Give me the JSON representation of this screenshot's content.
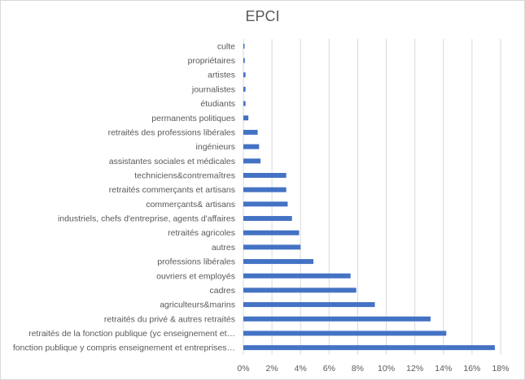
{
  "chart_data": {
    "type": "bar",
    "orientation": "horizontal",
    "title": "EPCI",
    "categories": [
      "fonction publique y compris enseignement et entreprises…",
      "retraités de la fonction publique (yc enseignement et…",
      "retraités du privé & autres retraités",
      "agriculteurs&marins",
      "cadres",
      "ouvriers et employés",
      "professions libérales",
      "autres",
      "retraités agricoles",
      "industriels, chefs d'entreprise, agents d'affaires",
      "commerçants& artisans",
      "retraités commerçants et artisans",
      "techniciens&contremaîtres",
      "assistantes sociales et médicales",
      "ingénieurs",
      "retraités des professions libérales",
      "permanents politiques",
      "étudiants",
      "journalistes",
      "artistes",
      "propriétaires",
      "culte"
    ],
    "values": [
      17.6,
      14.2,
      13.1,
      9.2,
      7.9,
      7.5,
      4.9,
      4.0,
      3.9,
      3.4,
      3.1,
      3.0,
      3.0,
      1.2,
      1.1,
      1.0,
      0.35,
      0.15,
      0.15,
      0.15,
      0.1,
      0.05
    ],
    "xlim": [
      0,
      18
    ],
    "xticks": [
      "0%",
      "2%",
      "4%",
      "6%",
      "8%",
      "10%",
      "12%",
      "14%",
      "16%",
      "18%"
    ],
    "xlabel": "",
    "ylabel": "",
    "grid": "vertical",
    "legend": "none",
    "bar_color": "#4472c4",
    "grid_color": "#d9d9d9",
    "text_color": "#595959"
  }
}
